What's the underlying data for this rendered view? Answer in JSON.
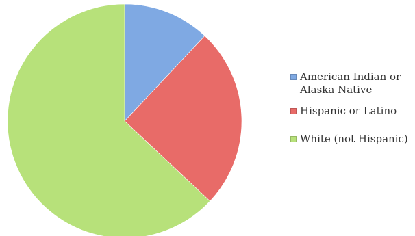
{
  "chart_data": {
    "type": "pie",
    "title": "",
    "categories": [
      "American Indian or\nAlaska Native",
      "Hispanic or Latino",
      "White (not Hispanic)"
    ],
    "values": [
      12,
      25,
      63
    ],
    "colors": [
      "#7fa9e3",
      "#e86b68",
      "#b7e17a"
    ],
    "legend_position": "right",
    "start_angle": "12 o'clock",
    "direction": "clockwise"
  }
}
